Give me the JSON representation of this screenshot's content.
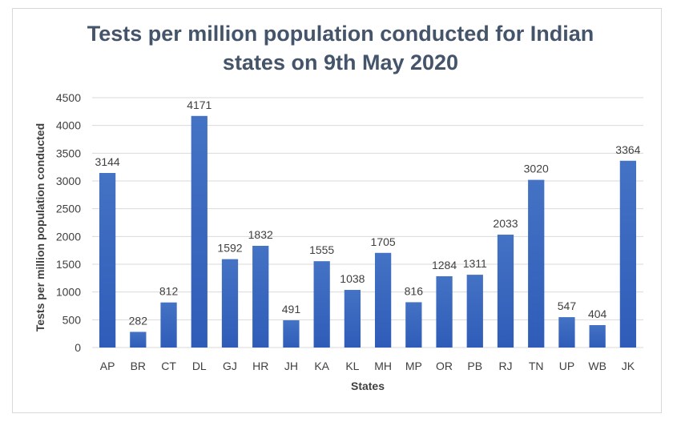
{
  "chart_data": {
    "type": "bar",
    "title_lines": [
      "Tests per million population conducted for Indian",
      "states on 9th May 2020"
    ],
    "xlabel": "States",
    "ylabel": "Tests per million population conducted",
    "categories": [
      "AP",
      "BR",
      "CT",
      "DL",
      "GJ",
      "HR",
      "JH",
      "KA",
      "KL",
      "MH",
      "MP",
      "OR",
      "PB",
      "RJ",
      "TN",
      "UP",
      "WB",
      "JK"
    ],
    "values": [
      3144,
      282,
      812,
      4171,
      1592,
      1832,
      491,
      1555,
      1038,
      1705,
      816,
      1284,
      1311,
      2033,
      3020,
      547,
      404,
      3364
    ],
    "ylim": [
      0,
      4500
    ],
    "yticks": [
      0,
      500,
      1000,
      1500,
      2000,
      2500,
      3000,
      3500,
      4000,
      4500
    ],
    "grid": true,
    "legend": "none",
    "colors": {
      "bar_top": "#4472c4",
      "bar_bottom": "#2f5cb8",
      "grid": "#d9d9d9",
      "title": "#44546a",
      "text": "#404040"
    }
  }
}
